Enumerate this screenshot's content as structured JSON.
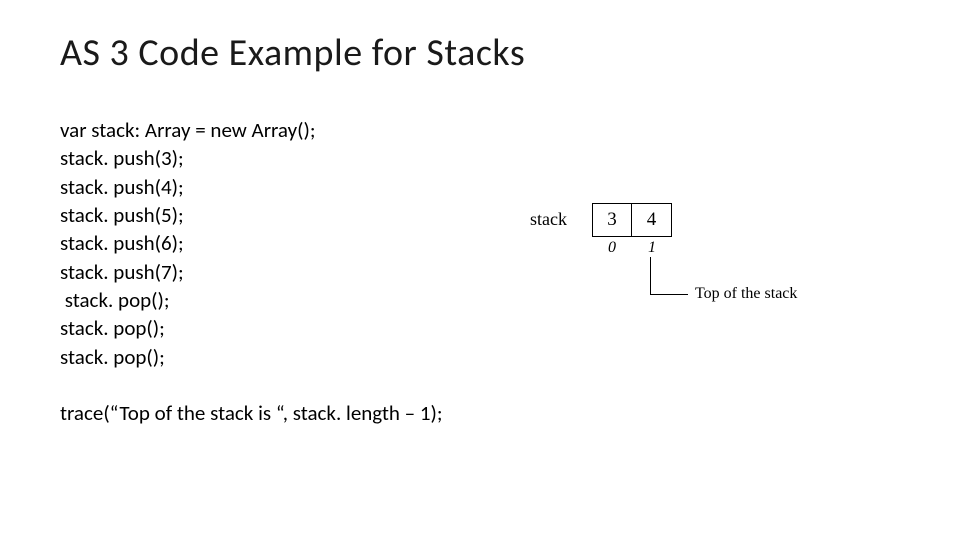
{
  "title": "AS 3 Code Example for Stacks",
  "code": {
    "lines": [
      "var stack: Array = new Array();",
      "stack. push(3);",
      "stack. push(4);",
      "stack. push(5);",
      "stack. push(6);",
      "stack. push(7);",
      " stack. pop();",
      "stack. pop();",
      "stack. pop();"
    ],
    "trace": "trace(“Top of the stack is “, stack. length – 1);"
  },
  "diagram": {
    "label": "stack",
    "cells": [
      "3",
      "4"
    ],
    "indices": [
      "0",
      "1"
    ],
    "top_label": "Top of the stack",
    "box_border_color": "#000000",
    "font_family": "Times New Roman",
    "label_fontsize": 18,
    "cell_fontsize": 19,
    "index_fontsize": 16,
    "top_label_fontsize": 16,
    "background_color": "#ffffff"
  },
  "style": {
    "title_fontsize": 38,
    "title_color": "#1a1a1a",
    "body_fontsize": 21,
    "body_color": "#000000",
    "background_color": "#ffffff",
    "font_family": "Calibri"
  }
}
